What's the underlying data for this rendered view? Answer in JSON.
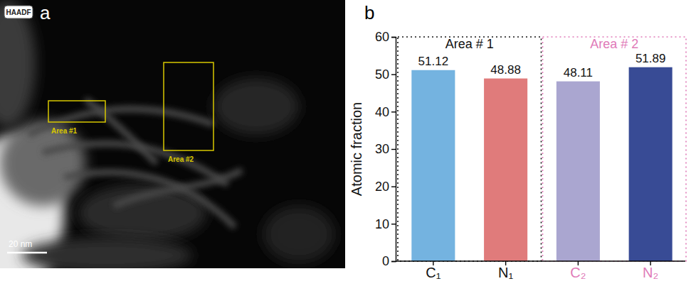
{
  "image_panel": {
    "panel_label": "a",
    "badge": "HAADF",
    "regions": [
      "Area #1",
      "Area #2"
    ],
    "scale_bar": "20 nm"
  },
  "chart_data": {
    "type": "bar",
    "panel_label": "b",
    "y_label": "Atomic fraction",
    "categories": [
      "C₁",
      "N₁",
      "C₂",
      "N₂"
    ],
    "series": [
      {
        "name": "Area # 1",
        "color": "#111111",
        "colors": [
          "#74b3e0",
          "#e07b7b",
          null,
          null
        ],
        "values": [
          51.12,
          48.88,
          null,
          null
        ]
      },
      {
        "name": "Area # 2",
        "color": "#e07ab8",
        "colors": [
          null,
          null,
          "#aaa6d0",
          "#384b95"
        ],
        "values": [
          null,
          null,
          48.11,
          51.89
        ]
      }
    ],
    "ylim": [
      0,
      60
    ],
    "yticks": [
      0,
      10,
      20,
      30,
      40,
      50,
      60
    ],
    "data_labels": true
  }
}
